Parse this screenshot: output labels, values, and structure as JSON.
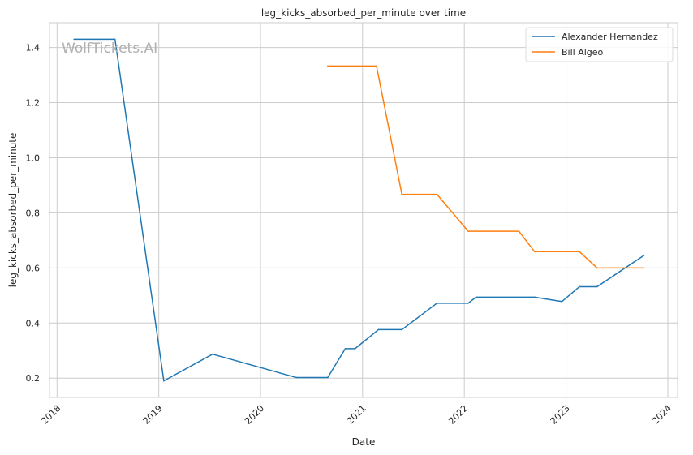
{
  "chart_data": {
    "type": "line",
    "title": "leg_kicks_absorbed_per_minute over time",
    "xlabel": "Date",
    "ylabel": "leg_kicks_absorbed_per_minute",
    "watermark": "WolfTickets.AI",
    "xlim": [
      "2017-12-05",
      "2024-02-05"
    ],
    "ylim": [
      0.13,
      1.49
    ],
    "x_ticks": [
      "2018",
      "2019",
      "2020",
      "2021",
      "2022",
      "2023",
      "2024"
    ],
    "y_ticks": [
      "0.2",
      "0.4",
      "0.6",
      "0.8",
      "1.0",
      "1.2",
      "1.4"
    ],
    "grid": true,
    "legend_position": "top-right",
    "series": [
      {
        "name": "Alexander Hernandez",
        "color": "#1f77b4",
        "points": [
          {
            "x": "2018-03-03",
            "y": 1.43
          },
          {
            "x": "2018-07-28",
            "y": 1.43
          },
          {
            "x": "2019-01-19",
            "y": 0.19
          },
          {
            "x": "2019-07-13",
            "y": 0.287
          },
          {
            "x": "2020-05-09",
            "y": 0.202
          },
          {
            "x": "2020-08-29",
            "y": 0.202
          },
          {
            "x": "2020-10-31",
            "y": 0.307
          },
          {
            "x": "2020-12-05",
            "y": 0.307
          },
          {
            "x": "2021-02-27",
            "y": 0.376
          },
          {
            "x": "2021-05-22",
            "y": 0.376
          },
          {
            "x": "2021-09-25",
            "y": 0.472
          },
          {
            "x": "2022-01-15",
            "y": 0.472
          },
          {
            "x": "2022-02-12",
            "y": 0.494
          },
          {
            "x": "2022-09-10",
            "y": 0.494
          },
          {
            "x": "2022-12-17",
            "y": 0.478
          },
          {
            "x": "2023-02-18",
            "y": 0.532
          },
          {
            "x": "2023-04-22",
            "y": 0.532
          },
          {
            "x": "2023-10-07",
            "y": 0.645
          }
        ]
      },
      {
        "name": "Bill Algeo",
        "color": "#ff7f0e",
        "points": [
          {
            "x": "2020-08-29",
            "y": 1.333
          },
          {
            "x": "2021-02-20",
            "y": 1.333
          },
          {
            "x": "2021-05-22",
            "y": 0.867
          },
          {
            "x": "2021-09-25",
            "y": 0.867
          },
          {
            "x": "2022-01-15",
            "y": 0.733
          },
          {
            "x": "2022-07-16",
            "y": 0.733
          },
          {
            "x": "2022-09-10",
            "y": 0.659
          },
          {
            "x": "2023-02-18",
            "y": 0.659
          },
          {
            "x": "2023-04-22",
            "y": 0.6
          },
          {
            "x": "2023-10-07",
            "y": 0.6
          }
        ]
      }
    ]
  }
}
